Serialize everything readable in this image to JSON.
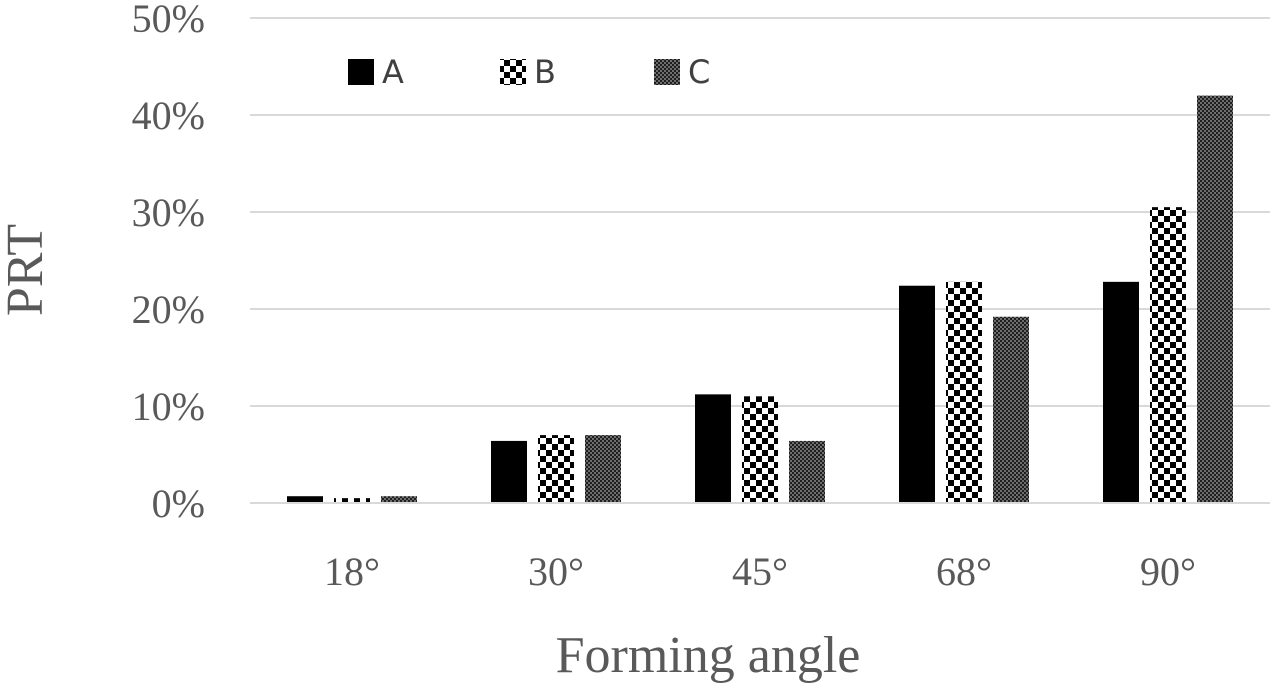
{
  "chart_data": {
    "type": "bar",
    "title": "",
    "xlabel": "Forming angle",
    "ylabel": "PRT",
    "categories": [
      "18°",
      "30°",
      "45°",
      "68°",
      "90°"
    ],
    "series": [
      {
        "name": "A",
        "values": [
          0.7,
          6.4,
          11.2,
          22.4,
          22.8
        ],
        "pattern": "solid",
        "color": "#000000"
      },
      {
        "name": "B",
        "values": [
          0.5,
          7.0,
          11.0,
          22.8,
          30.5
        ],
        "pattern": "checker",
        "color": "#000000"
      },
      {
        "name": "C",
        "values": [
          0.7,
          7.0,
          6.4,
          19.2,
          42.0
        ],
        "pattern": "fine-dots",
        "color": "#3a3a3a"
      }
    ],
    "ylim": [
      0,
      50
    ],
    "yticks": [
      "0%",
      "10%",
      "20%",
      "30%",
      "40%",
      "50%"
    ],
    "grid": true,
    "legend": "top-left"
  }
}
